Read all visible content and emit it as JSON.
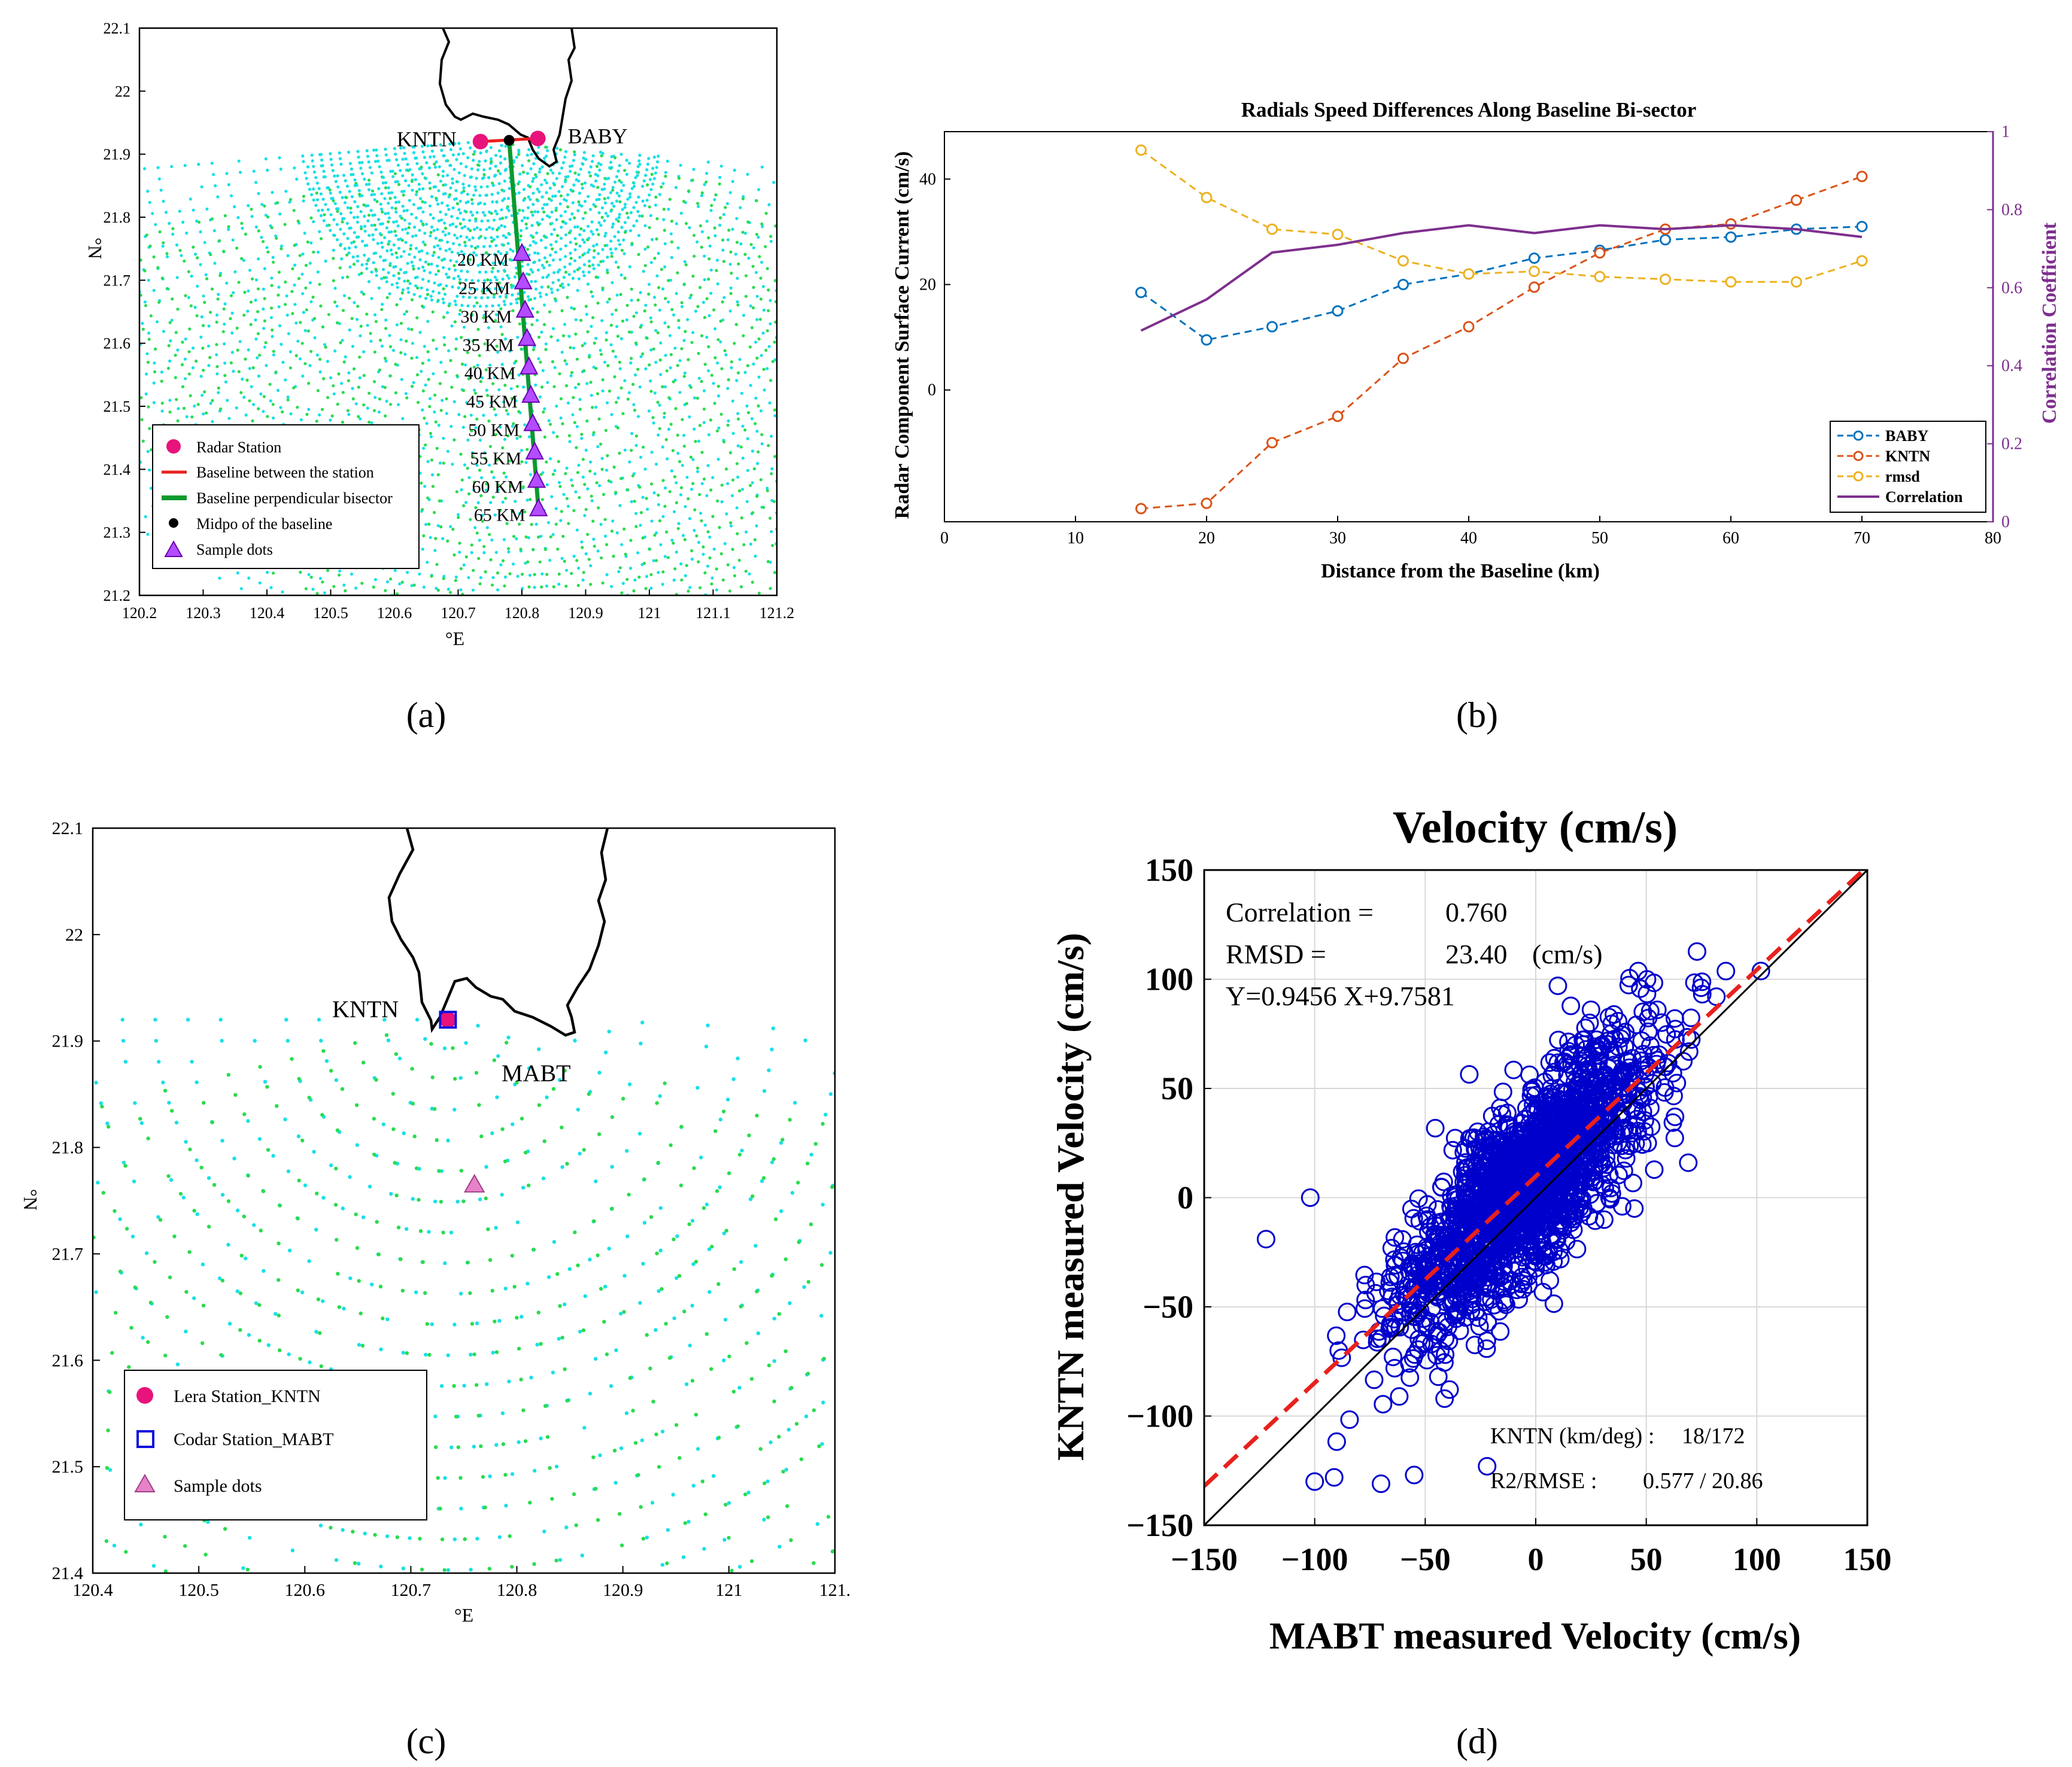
{
  "panels": {
    "a": {
      "label": "(a)",
      "xlabel": "°E",
      "ylabel": "°N",
      "xticks": [
        "120.2",
        "120.3",
        "120.4",
        "120.5",
        "120.6",
        "120.7",
        "120.8",
        "120.9",
        "121",
        "121.1",
        "121.2"
      ],
      "yticks": [
        "22.1",
        "22",
        "21.9",
        "21.8",
        "21.7",
        "21.6",
        "21.5",
        "21.4",
        "21.3",
        "21.2"
      ],
      "stations": [
        {
          "name": "KNTN",
          "lon": 120.735,
          "lat": 21.92
        },
        {
          "name": "BABY",
          "lon": 120.825,
          "lat": 21.925
        }
      ],
      "midpoint": {
        "lon": 120.78,
        "lat": 21.922
      },
      "samples": [
        {
          "label": "20 KM",
          "lon": 120.8,
          "lat": 21.742
        },
        {
          "label": "25 KM",
          "lon": 120.802,
          "lat": 21.697
        },
        {
          "label": "30 KM",
          "lon": 120.805,
          "lat": 21.652
        },
        {
          "label": "35 KM",
          "lon": 120.808,
          "lat": 21.607
        },
        {
          "label": "40 KM",
          "lon": 120.811,
          "lat": 21.562
        },
        {
          "label": "45 KM",
          "lon": 120.814,
          "lat": 21.517
        },
        {
          "label": "50 KM",
          "lon": 120.817,
          "lat": 21.472
        },
        {
          "label": "55 KM",
          "lon": 120.82,
          "lat": 21.427
        },
        {
          "label": "60 KM",
          "lon": 120.823,
          "lat": 21.382
        },
        {
          "label": "65 KM",
          "lon": 120.826,
          "lat": 21.337
        }
      ],
      "legend": [
        "Radar Station",
        "Baseline between the station",
        "Baseline perpendicular bisector",
        "Midpo of the baseline",
        "Sample dots"
      ]
    },
    "b": {
      "label": "(b)"
    },
    "c": {
      "label": "(c)",
      "xlabel": "°E",
      "ylabel": "°N",
      "xticks": [
        "120.4",
        "120.5",
        "120.6",
        "120.7",
        "120.8",
        "120.9",
        "121",
        "121."
      ],
      "yticks": [
        "22.1",
        "22",
        "21.9",
        "21.8",
        "21.7",
        "21.6",
        "21.5",
        "21.4"
      ],
      "station_labels": [
        "KNTN",
        "MABT"
      ],
      "station": {
        "lon": 120.735,
        "lat": 21.92
      },
      "sample": {
        "lon": 120.76,
        "lat": 21.765
      },
      "legend": [
        "Lera Station_KNTN",
        "Codar Station_MABT",
        "Sample dots"
      ]
    },
    "d": {
      "label": "(d)",
      "stats": {
        "correlation_label": "Correlation =",
        "correlation_value": "0.760",
        "rmsd_label": "RMSD =",
        "rmsd_value": "23.40",
        "rmsd_unit": "(cm/s)",
        "fit_equation": "Y=0.9456 X+9.7581",
        "kntn_label": "KNTN (km/deg) :",
        "kntn_value": "18/172",
        "r2_label": "R2/RMSE :",
        "r2_value": "0.577 /  20.86"
      }
    }
  },
  "chart_data": [
    {
      "type": "line",
      "title": "Radials Speed Differences Along Baseline Bi-sector",
      "xlabel": "Distance from the Baseline (km)",
      "ylabel": "Radar Component Surface Current (cm/s)",
      "y2label": "Correlation Coefficient",
      "xlim": [
        0,
        80
      ],
      "ylim": [
        -25,
        49
      ],
      "y2lim": [
        0,
        1
      ],
      "xticks": [
        0,
        10,
        20,
        30,
        40,
        50,
        60,
        70,
        80
      ],
      "yticks": [
        0,
        20,
        40
      ],
      "y2ticks": [
        0,
        0.2,
        0.4,
        0.6,
        0.8,
        1
      ],
      "x": [
        15,
        20,
        25,
        30,
        35,
        40,
        45,
        50,
        55,
        60,
        65,
        70
      ],
      "series": [
        {
          "name": "BABY",
          "axis": "left",
          "color": "#0072BD",
          "style": "dashed",
          "values": [
            18.5,
            9.5,
            12,
            15,
            20,
            22,
            25,
            26.5,
            28.5,
            29,
            30.5,
            31
          ]
        },
        {
          "name": "KNTN",
          "axis": "left",
          "color": "#D95319",
          "style": "dashed",
          "values": [
            -22.5,
            -21.5,
            -10,
            -5,
            6,
            12,
            19.5,
            26,
            30.5,
            31.5,
            36,
            40.5
          ]
        },
        {
          "name": "rmsd",
          "axis": "left",
          "color": "#EDB120",
          "style": "dashed",
          "values": [
            45.5,
            36.5,
            30.5,
            29.5,
            24.5,
            22,
            22.5,
            21.5,
            21,
            20.5,
            20.5,
            24.5
          ]
        },
        {
          "name": "Correlation",
          "axis": "right",
          "color": "#7E2F8E",
          "style": "solid",
          "values": [
            0.49,
            0.57,
            0.69,
            0.71,
            0.74,
            0.76,
            0.74,
            0.76,
            0.75,
            0.76,
            0.75,
            0.73
          ]
        }
      ],
      "legend_position": "bottom-right"
    },
    {
      "type": "scatter",
      "title": "Velocity (cm/s)",
      "xlabel": "MABT measured Velocity (cm/s)",
      "ylabel": "KNTN measured Velocity (cm/s)",
      "xlim": [
        -150,
        150
      ],
      "ylim": [
        -150,
        150
      ],
      "xticks": [
        "−150",
        "−100",
        "−50",
        "0",
        "50",
        "100",
        "150"
      ],
      "yticks": [
        "150",
        "100",
        "50",
        "0",
        "−50",
        "−100",
        "−150"
      ],
      "identity_line": [
        [
          -150,
          -150
        ],
        [
          150,
          150
        ]
      ],
      "fit_line": {
        "slope": 0.9456,
        "intercept": 9.7581,
        "color": "#E8211D"
      },
      "marker_color": "#0000CC",
      "n_points": 1900,
      "outliers": [
        [
          -122,
          -19
        ],
        [
          -102,
          0
        ],
        [
          10,
          97
        ],
        [
          25,
          86
        ],
        [
          55,
          86
        ],
        [
          63,
          37
        ],
        [
          69,
          16
        ],
        [
          -100,
          -130
        ],
        [
          -70,
          -131
        ],
        [
          -55,
          -127
        ],
        [
          -22,
          -123
        ]
      ]
    }
  ]
}
